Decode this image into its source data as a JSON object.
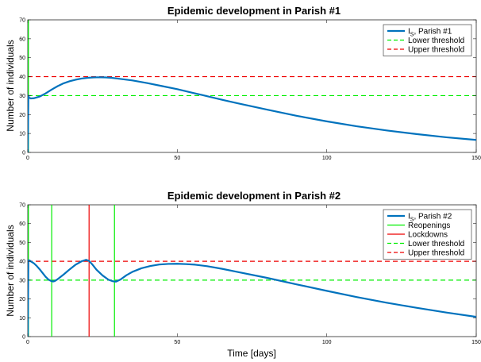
{
  "chart_data": [
    {
      "type": "line",
      "title": "Epidemic development in Parish #1",
      "xlabel": "",
      "ylabel": "Number of individuals",
      "xlim": [
        0,
        150
      ],
      "ylim": [
        0,
        70
      ],
      "xticks": [
        "0",
        "50",
        "100",
        "150"
      ],
      "yticks": [
        "0",
        "10",
        "20",
        "30",
        "40",
        "50",
        "60",
        "70"
      ],
      "legend_position": "top-right",
      "series": [
        {
          "name_main": "I",
          "name_sub": "S",
          "name_rest": ", Parish #1",
          "color": "#0072BD",
          "style": "solid",
          "x": [
            0,
            0.2,
            0.4,
            1,
            2,
            4,
            6,
            8,
            10,
            12,
            14,
            16,
            18,
            20,
            22,
            24,
            26,
            28,
            30,
            35,
            40,
            45,
            50,
            55,
            60,
            65,
            70,
            80,
            90,
            100,
            110,
            120,
            130,
            140,
            150
          ],
          "y": [
            0,
            30,
            29,
            28.5,
            28.6,
            29.5,
            31.2,
            33.2,
            35,
            36.5,
            37.6,
            38.4,
            39,
            39.4,
            39.6,
            39.7,
            39.6,
            39.4,
            39,
            38,
            36.6,
            35,
            33.4,
            31.5,
            29.7,
            27.8,
            26,
            22.6,
            19.3,
            16.4,
            13.8,
            11.6,
            9.7,
            8,
            6.6
          ]
        },
        {
          "name": "Lower threshold",
          "color": "#00EE00",
          "style": "dashed",
          "y_const": 30
        },
        {
          "name": "Upper threshold",
          "color": "#EE0000",
          "style": "dashed",
          "y_const": 40
        }
      ],
      "vlines": [
        {
          "x": 0,
          "color": "#00EE00"
        }
      ]
    },
    {
      "type": "line",
      "title": "Epidemic development in Parish #2",
      "xlabel": "Time [days]",
      "ylabel": "Number of individuals",
      "xlim": [
        0,
        150
      ],
      "ylim": [
        0,
        70
      ],
      "xticks": [
        "0",
        "50",
        "100",
        "150"
      ],
      "yticks": [
        "0",
        "10",
        "20",
        "30",
        "40",
        "50",
        "60",
        "70"
      ],
      "legend_position": "top-right",
      "series": [
        {
          "name_main": "I",
          "name_sub": "S",
          "name_rest": ", Parish #2",
          "color": "#0072BD",
          "style": "solid",
          "x": [
            0,
            0.2,
            0.5,
            1,
            2,
            3,
            4,
            5,
            6,
            7,
            8,
            8.5,
            9,
            10,
            12,
            14,
            16,
            18,
            19.5,
            20.5,
            21.5,
            23,
            25,
            27,
            28.5,
            29.5,
            31,
            33,
            35,
            38,
            41,
            44,
            47,
            50,
            53,
            56,
            60,
            65,
            70,
            80,
            90,
            100,
            110,
            120,
            130,
            140,
            150
          ],
          "y": [
            0,
            40.5,
            40.5,
            40,
            39,
            37.5,
            35.7,
            33.7,
            31.7,
            30.2,
            29.4,
            29.3,
            29.5,
            30.5,
            33,
            35.7,
            38.2,
            40,
            40.8,
            40.2,
            38.5,
            35.5,
            32.5,
            30.2,
            29.4,
            29.2,
            30.3,
            32.6,
            34.4,
            36.3,
            37.5,
            38.3,
            38.6,
            38.7,
            38.5,
            38.2,
            37.4,
            36,
            34.4,
            31.2,
            27.7,
            24.3,
            21,
            18,
            15.3,
            12.8,
            10.5
          ]
        },
        {
          "name": "Reopenings",
          "color": "#00EE00",
          "style": "solid"
        },
        {
          "name": "Lockdowns",
          "color": "#EE0000",
          "style": "solid"
        },
        {
          "name": "Lower threshold",
          "color": "#00EE00",
          "style": "dashed",
          "y_const": 30
        },
        {
          "name": "Upper threshold",
          "color": "#EE0000",
          "style": "dashed",
          "y_const": 40
        }
      ],
      "vlines": [
        {
          "x": 0,
          "color": "#00EE00"
        },
        {
          "x": 8,
          "color": "#00EE00"
        },
        {
          "x": 20.5,
          "color": "#EE0000"
        },
        {
          "x": 29,
          "color": "#00EE00"
        }
      ]
    }
  ]
}
